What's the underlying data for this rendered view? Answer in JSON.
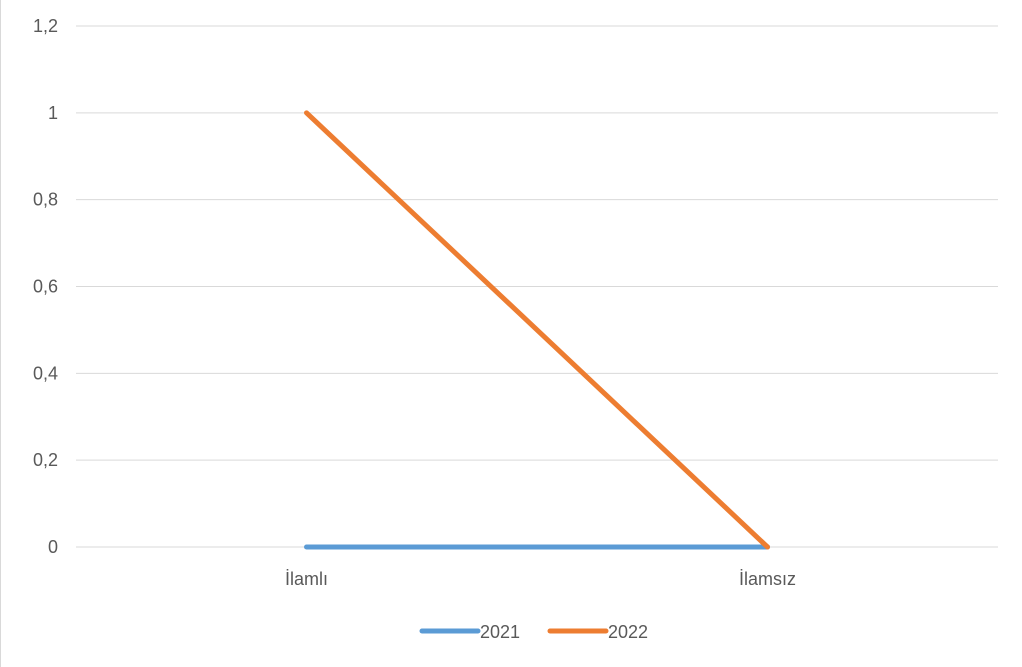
{
  "chart_data": {
    "type": "line",
    "categories": [
      "İlamlı",
      "İlamsız"
    ],
    "series": [
      {
        "name": "2021",
        "values": [
          0,
          0
        ],
        "color": "#5b9bd5"
      },
      {
        "name": "2022",
        "values": [
          1,
          0
        ],
        "color": "#ed7d31"
      }
    ],
    "ylim": [
      0,
      1.2
    ],
    "yticks": [
      "0",
      "0,2",
      "0,4",
      "0,6",
      "0,8",
      "1",
      "1,2"
    ],
    "grid": true,
    "legend_position": "bottom"
  }
}
